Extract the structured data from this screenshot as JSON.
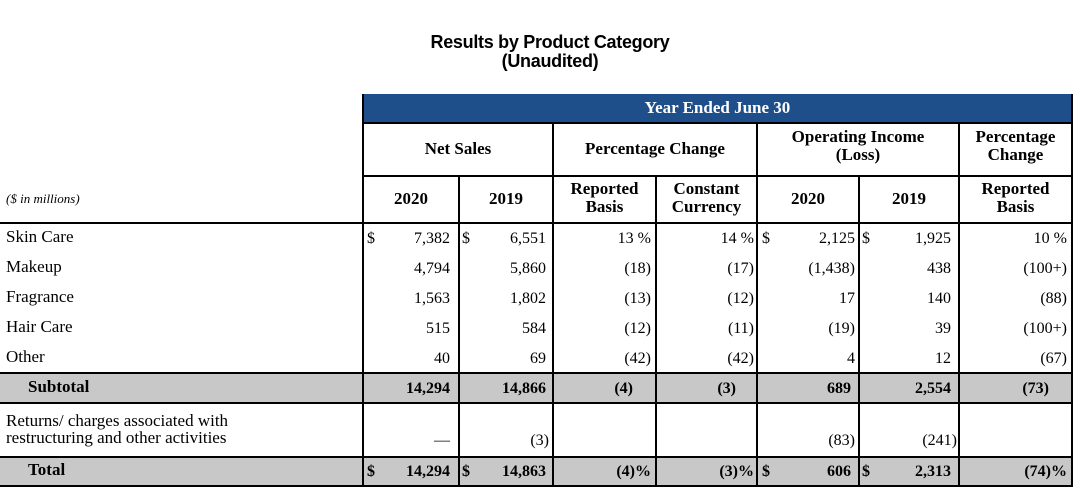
{
  "title": "Results by Product Category",
  "subtitle": "(Unaudited)",
  "banner": "Year Ended June 30",
  "groups": {
    "net_sales": "Net Sales",
    "pct_change": "Percentage Change",
    "op_income_l1": "Operating Income",
    "op_income_l2": "(Loss)",
    "pct_change2_l1": "Percentage",
    "pct_change2_l2": "Change"
  },
  "subheaders": {
    "units": "($ in millions)",
    "y2020": "2020",
    "y2019": "2019",
    "reported_l1": "Reported",
    "reported_l2": "Basis",
    "constant_l1": "Constant",
    "constant_l2": "Currency",
    "oi2020": "2020",
    "oi2019": "2019",
    "reported2_l1": "Reported",
    "reported2_l2": "Basis"
  },
  "dollar": "$",
  "rows": [
    {
      "label": "Skin Care",
      "ns2020": "7,382",
      "ns2019": "6,551",
      "rep": "13 %",
      "cc": "14 %",
      "oi2020": "2,125",
      "oi2019": "1,925",
      "oirep": "10 %"
    },
    {
      "label": "Makeup",
      "ns2020": "4,794",
      "ns2019": "5,860",
      "rep": "(18)",
      "cc": "(17)",
      "oi2020": "(1,438)",
      "oi2019": "438",
      "oirep": "(100+)"
    },
    {
      "label": "Fragrance",
      "ns2020": "1,563",
      "ns2019": "1,802",
      "rep": "(13)",
      "cc": "(12)",
      "oi2020": "17",
      "oi2019": "140",
      "oirep": "(88)"
    },
    {
      "label": "Hair Care",
      "ns2020": "515",
      "ns2019": "584",
      "rep": "(12)",
      "cc": "(11)",
      "oi2020": "(19)",
      "oi2019": "39",
      "oirep": "(100+)"
    },
    {
      "label": "Other",
      "ns2020": "40",
      "ns2019": "69",
      "rep": "(42)",
      "cc": "(42)",
      "oi2020": "4",
      "oi2019": "12",
      "oirep": "(67)"
    }
  ],
  "subtotal": {
    "label": "Subtotal",
    "ns2020": "14,294",
    "ns2019": "14,866",
    "rep": "(4)",
    "cc": "(3)",
    "oi2020": "689",
    "oi2019": "2,554",
    "oirep": "(73)"
  },
  "returns": {
    "label_l1": "Returns/ charges associated with",
    "label_l2": "restructuring and other activities",
    "ns2020": "—",
    "ns2019": "(3)",
    "oi2020": "(83)",
    "oi2019": "(241)"
  },
  "total": {
    "label": "Total",
    "ns2020": "14,294",
    "ns2019": "14,863",
    "rep": "(4)%",
    "cc": "(3)%",
    "oi2020": "606",
    "oi2019": "2,313",
    "oirep": "(74)%"
  }
}
